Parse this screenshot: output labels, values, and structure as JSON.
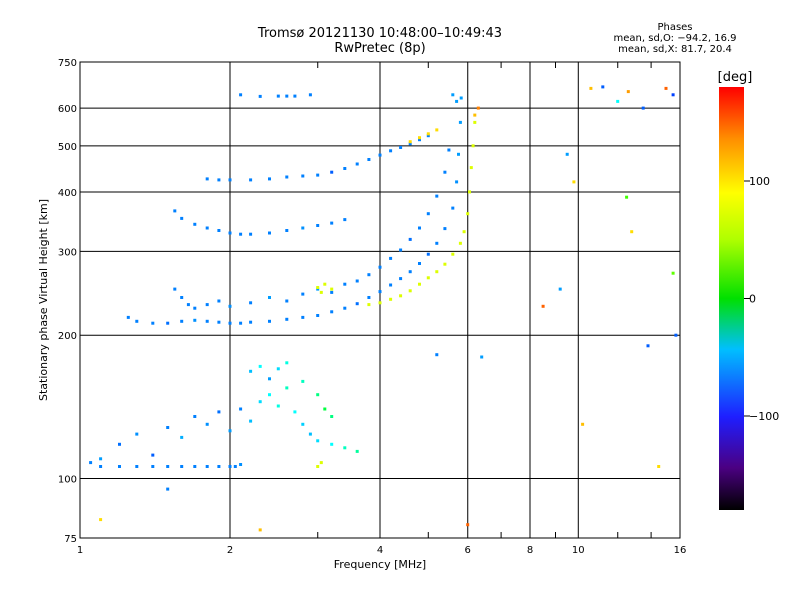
{
  "header": {
    "title_line1": "Tromsø 20121130 10:48:00–10:49:43",
    "title_line2": "RwPretec (8p)"
  },
  "phase_info": {
    "title": "Phases",
    "line1": "mean, sd,O: −94.2, 16.9",
    "line2": "mean, sd,X:  81.7, 20.4"
  },
  "colorbar": {
    "label": "[deg]",
    "range": [
      -180,
      180
    ],
    "ticks": [
      {
        "value": 100,
        "label": "100"
      },
      {
        "value": 0,
        "label": "0"
      },
      {
        "value": -100,
        "label": "−100"
      }
    ]
  },
  "chart_data": {
    "type": "scatter",
    "title": "Tromsø 20121130 10:48:00–10:49:43",
    "subtitle": "RwPretec (8p)",
    "xlabel": "Frequency [MHz]",
    "ylabel": "Stationary phase Virtual Height [km]",
    "x_scale": "log",
    "y_scale": "log",
    "xlim": [
      1,
      16
    ],
    "ylim": [
      75,
      750
    ],
    "x_ticks": [
      {
        "value": 1,
        "label": "1"
      },
      {
        "value": 2,
        "label": "2"
      },
      {
        "value": 4,
        "label": "4"
      },
      {
        "value": 6,
        "label": "6"
      },
      {
        "value": 8,
        "label": "8"
      },
      {
        "value": 10,
        "label": "10"
      },
      {
        "value": 16,
        "label": "16"
      }
    ],
    "x_gridlines": [
      2,
      4,
      6,
      8,
      10
    ],
    "x_minor_ticks": [
      3,
      5,
      7,
      9,
      12,
      14
    ],
    "y_ticks": [
      {
        "value": 75,
        "label": "75"
      },
      {
        "value": 100,
        "label": "100"
      },
      {
        "value": 200,
        "label": "200"
      },
      {
        "value": 300,
        "label": "300"
      },
      {
        "value": 400,
        "label": "400"
      },
      {
        "value": 500,
        "label": "500"
      },
      {
        "value": 600,
        "label": "600"
      },
      {
        "value": 750,
        "label": "750"
      }
    ],
    "y_gridlines": [
      100,
      200,
      300,
      400,
      500,
      600
    ],
    "grid": true,
    "color_variable": "phase [deg]",
    "color_range": [
      -180,
      180
    ],
    "series": [
      {
        "points": [
          [
            1.05,
            108,
            -100
          ],
          [
            1.1,
            110,
            -90
          ],
          [
            1.2,
            118,
            -105
          ],
          [
            1.3,
            124,
            -95
          ],
          [
            1.4,
            112,
            -110
          ],
          [
            1.5,
            128,
            -100
          ],
          [
            1.6,
            122,
            -85
          ],
          [
            1.7,
            135,
            -100
          ],
          [
            1.8,
            130,
            -95
          ],
          [
            1.9,
            138,
            -105
          ],
          [
            2.0,
            126,
            -90
          ],
          [
            2.1,
            140,
            -100
          ],
          [
            2.2,
            132,
            -80
          ],
          [
            2.3,
            145,
            -70
          ],
          [
            2.4,
            150,
            -60
          ],
          [
            2.5,
            142,
            -50
          ],
          [
            2.6,
            155,
            -40
          ],
          [
            2.7,
            138,
            -60
          ],
          [
            2.8,
            130,
            -75
          ],
          [
            2.9,
            124,
            -80
          ],
          [
            3.0,
            120,
            -70
          ],
          [
            3.2,
            118,
            -60
          ],
          [
            3.4,
            116,
            -40
          ],
          [
            3.6,
            114,
            -30
          ]
        ]
      },
      {
        "points": [
          [
            1.1,
            106,
            -100
          ],
          [
            1.2,
            106,
            -100
          ],
          [
            1.3,
            106,
            -100
          ],
          [
            1.4,
            106,
            -100
          ],
          [
            1.5,
            106,
            -100
          ],
          [
            1.6,
            106,
            -100
          ],
          [
            1.7,
            106,
            -100
          ],
          [
            1.8,
            106,
            -100
          ],
          [
            1.9,
            106,
            -100
          ],
          [
            2.0,
            106,
            -100
          ],
          [
            2.05,
            106,
            -100
          ],
          [
            2.1,
            107,
            -95
          ]
        ]
      },
      {
        "points": [
          [
            2.2,
            168,
            -80
          ],
          [
            2.3,
            172,
            -60
          ],
          [
            2.4,
            162,
            -90
          ],
          [
            2.5,
            170,
            -70
          ],
          [
            2.6,
            175,
            -50
          ],
          [
            2.8,
            160,
            -40
          ],
          [
            3.0,
            150,
            -20
          ],
          [
            3.1,
            140,
            0
          ],
          [
            3.2,
            135,
            -20
          ]
        ]
      },
      {
        "points": [
          [
            1.25,
            218,
            -100
          ],
          [
            1.3,
            214,
            -100
          ],
          [
            1.4,
            212,
            -100
          ],
          [
            1.5,
            212,
            -105
          ],
          [
            1.6,
            214,
            -100
          ],
          [
            1.7,
            215,
            -95
          ],
          [
            1.8,
            214,
            -100
          ],
          [
            1.9,
            213,
            -100
          ],
          [
            2.0,
            212,
            -100
          ],
          [
            2.1,
            212,
            -100
          ],
          [
            2.2,
            213,
            -100
          ],
          [
            2.4,
            214,
            -100
          ],
          [
            2.6,
            216,
            -100
          ],
          [
            2.8,
            218,
            -100
          ],
          [
            3.0,
            220,
            -100
          ],
          [
            3.2,
            224,
            -100
          ],
          [
            3.4,
            228,
            -100
          ],
          [
            3.6,
            233,
            -105
          ],
          [
            3.8,
            240,
            -100
          ],
          [
            4.0,
            247,
            -100
          ],
          [
            4.2,
            255,
            -100
          ],
          [
            4.4,
            263,
            -100
          ],
          [
            4.6,
            272,
            -100
          ],
          [
            4.8,
            283,
            -100
          ],
          [
            5.0,
            296,
            -105
          ],
          [
            5.2,
            312,
            -100
          ],
          [
            5.4,
            335,
            -100
          ],
          [
            5.6,
            370,
            -100
          ],
          [
            5.7,
            420,
            -95
          ],
          [
            5.75,
            480,
            -90
          ],
          [
            5.8,
            560,
            -90
          ],
          [
            5.82,
            630,
            -90
          ]
        ]
      },
      {
        "points": [
          [
            1.55,
            250,
            -100
          ],
          [
            1.6,
            240,
            -100
          ],
          [
            1.65,
            232,
            -100
          ],
          [
            1.7,
            228,
            -100
          ],
          [
            1.8,
            232,
            -100
          ],
          [
            1.9,
            236,
            -100
          ],
          [
            2.0,
            230,
            -95
          ],
          [
            2.2,
            234,
            -100
          ],
          [
            2.4,
            240,
            -90
          ],
          [
            2.6,
            236,
            -100
          ],
          [
            2.8,
            244,
            -100
          ],
          [
            3.0,
            250,
            -90
          ],
          [
            3.2,
            246,
            -100
          ],
          [
            3.4,
            256,
            -100
          ],
          [
            3.6,
            260,
            -100
          ],
          [
            3.8,
            268,
            -100
          ],
          [
            4.0,
            278,
            -100
          ],
          [
            4.2,
            290,
            -100
          ],
          [
            4.4,
            302,
            -100
          ],
          [
            4.6,
            318,
            -105
          ],
          [
            4.8,
            336,
            -100
          ],
          [
            5.0,
            360,
            -100
          ],
          [
            5.2,
            392,
            -100
          ],
          [
            5.4,
            440,
            -100
          ],
          [
            5.5,
            490,
            -100
          ]
        ]
      },
      {
        "points": [
          [
            1.55,
            365,
            -100
          ],
          [
            1.6,
            352,
            -100
          ],
          [
            1.7,
            342,
            -100
          ],
          [
            1.8,
            336,
            -100
          ],
          [
            1.9,
            332,
            -100
          ],
          [
            2.0,
            328,
            -100
          ],
          [
            2.1,
            326,
            -100
          ],
          [
            2.2,
            326,
            -100
          ],
          [
            2.4,
            328,
            -100
          ],
          [
            2.6,
            332,
            -100
          ],
          [
            2.8,
            336,
            -95
          ],
          [
            3.0,
            340,
            -100
          ],
          [
            3.2,
            344,
            -100
          ],
          [
            3.4,
            350,
            -100
          ]
        ]
      },
      {
        "points": [
          [
            1.8,
            426,
            -100
          ],
          [
            1.9,
            424,
            -100
          ],
          [
            2.0,
            424,
            -100
          ],
          [
            2.2,
            424,
            -100
          ],
          [
            2.4,
            426,
            -100
          ],
          [
            2.6,
            430,
            -100
          ],
          [
            2.8,
            432,
            -100
          ],
          [
            3.0,
            434,
            -100
          ],
          [
            3.2,
            440,
            -110
          ],
          [
            3.4,
            448,
            -100
          ],
          [
            3.6,
            458,
            -100
          ],
          [
            3.8,
            468,
            -100
          ],
          [
            4.0,
            478,
            -100
          ],
          [
            4.2,
            488,
            -100
          ],
          [
            4.4,
            496,
            -100
          ],
          [
            4.6,
            505,
            -100
          ],
          [
            4.8,
            515,
            -100
          ],
          [
            5.0,
            525,
            -100
          ]
        ]
      },
      {
        "points": [
          [
            2.1,
            640,
            -100
          ],
          [
            2.3,
            635,
            -100
          ],
          [
            2.5,
            636,
            -100
          ],
          [
            2.6,
            636,
            -100
          ],
          [
            2.7,
            636,
            -100
          ],
          [
            2.9,
            640,
            -100
          ],
          [
            5.6,
            640,
            -90
          ],
          [
            5.7,
            620,
            -90
          ]
        ]
      },
      {
        "points": [
          [
            3.8,
            232,
            90
          ],
          [
            4.0,
            234,
            90
          ],
          [
            4.2,
            238,
            90
          ],
          [
            4.4,
            242,
            90
          ],
          [
            4.6,
            248,
            90
          ],
          [
            4.8,
            256,
            90
          ],
          [
            5.0,
            264,
            90
          ],
          [
            5.2,
            272,
            90
          ],
          [
            5.4,
            282,
            90
          ],
          [
            5.6,
            296,
            90
          ],
          [
            5.8,
            312,
            90
          ],
          [
            5.9,
            330,
            90
          ],
          [
            6.0,
            360,
            90
          ],
          [
            6.05,
            400,
            90
          ],
          [
            6.1,
            450,
            90
          ],
          [
            6.15,
            500,
            90
          ],
          [
            6.2,
            560,
            90
          ]
        ]
      },
      {
        "points": [
          [
            4.6,
            510,
            110
          ],
          [
            4.8,
            520,
            110
          ],
          [
            5.0,
            530,
            110
          ],
          [
            5.2,
            540,
            110
          ]
        ]
      },
      {
        "points": [
          [
            3.0,
            252,
            90
          ],
          [
            3.05,
            246,
            90
          ],
          [
            3.1,
            256,
            90
          ],
          [
            3.2,
            250,
            90
          ],
          [
            3.0,
            106,
            90
          ],
          [
            3.05,
            108,
            90
          ]
        ]
      },
      {
        "points": [
          [
            6.2,
            580,
            120
          ],
          [
            6.3,
            600,
            140
          ],
          [
            10.6,
            660,
            120
          ],
          [
            11.2,
            665,
            -110
          ],
          [
            12.6,
            650,
            130
          ],
          [
            13.5,
            600,
            -110
          ],
          [
            15.0,
            660,
            150
          ],
          [
            15.5,
            640,
            -120
          ],
          [
            12.0,
            620,
            -60
          ],
          [
            12.5,
            390,
            40
          ],
          [
            12.8,
            330,
            110
          ],
          [
            15.5,
            270,
            50
          ],
          [
            9.5,
            480,
            -90
          ],
          [
            9.8,
            420,
            110
          ],
          [
            9.2,
            250,
            -90
          ],
          [
            13.8,
            190,
            -110
          ],
          [
            15.7,
            200,
            -110
          ],
          [
            10.2,
            130,
            120
          ],
          [
            14.5,
            106,
            110
          ],
          [
            8.5,
            230,
            150
          ],
          [
            6.4,
            180,
            -90
          ],
          [
            5.2,
            182,
            -100
          ],
          [
            6.0,
            80,
            150
          ],
          [
            2.3,
            78,
            120
          ],
          [
            1.5,
            95,
            -100
          ],
          [
            1.1,
            82,
            110
          ]
        ]
      }
    ]
  }
}
